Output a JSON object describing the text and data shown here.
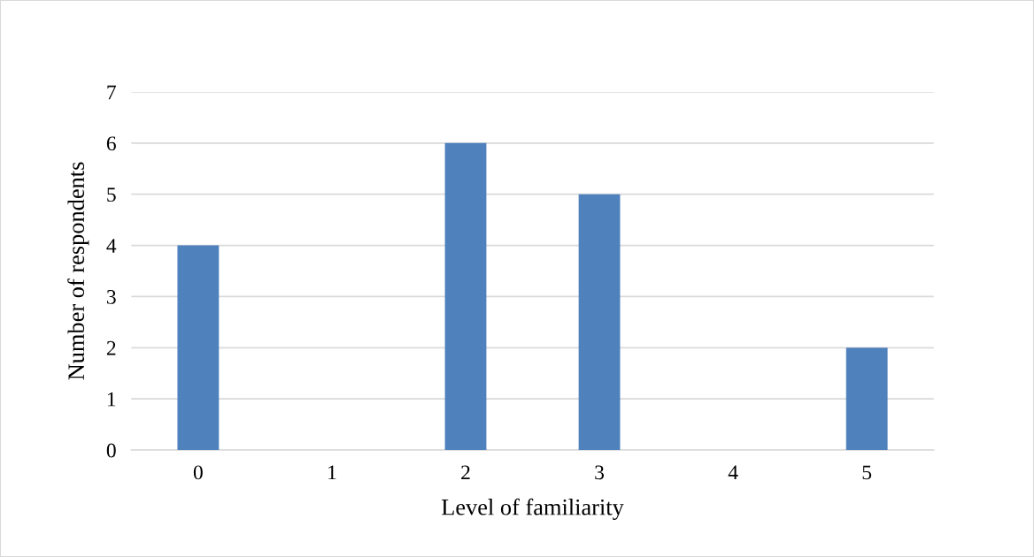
{
  "chart_data": {
    "type": "bar",
    "xlabel": "Level of familiarity",
    "ylabel": "Number of respondents",
    "categories": [
      "0",
      "1",
      "2",
      "3",
      "4",
      "5"
    ],
    "values": [
      4,
      0,
      6,
      5,
      0,
      2
    ],
    "color": "#4f81bd",
    "ylim": [
      0,
      7
    ],
    "yticks": [
      0,
      1,
      2,
      3,
      4,
      5,
      6,
      7
    ],
    "grid": "y"
  }
}
